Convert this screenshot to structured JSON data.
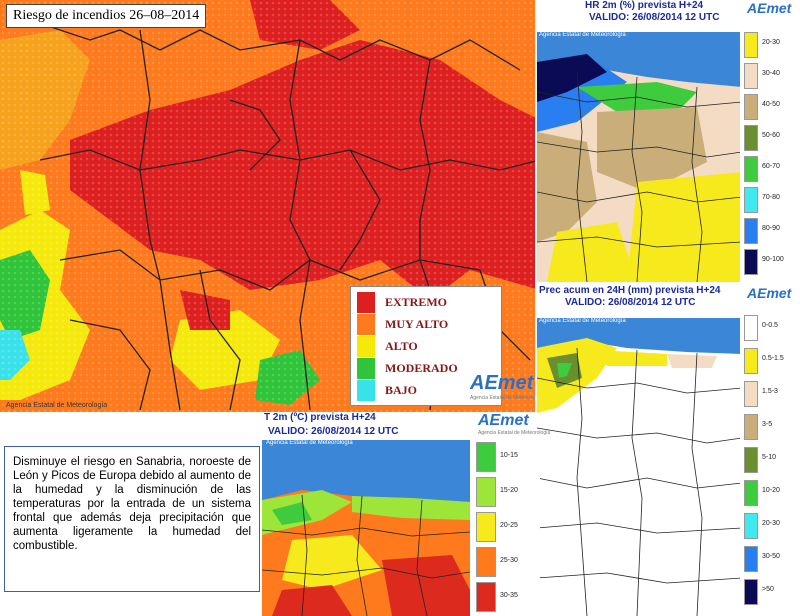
{
  "main_map": {
    "title": "Riesgo de incendios 26–08–2014",
    "credit": "Agencia Estatal de Meteorología",
    "legend": [
      {
        "label": "EXTREMO",
        "color": "#dd1f1f"
      },
      {
        "label": "MUY ALTO",
        "color": "#ff7a1c"
      },
      {
        "label": "ALTO",
        "color": "#f4e90b"
      },
      {
        "label": "MODERADO",
        "color": "#2fc439"
      },
      {
        "label": "BAJO",
        "color": "#39e2e8"
      }
    ]
  },
  "hr_map": {
    "title": "HR 2m (%) prevista H+24",
    "valid": "VALIDO: 26/08/2014 12 UTC",
    "credit": "Agencia Estatal de Meteorología",
    "legend": [
      {
        "label": "20-30",
        "color": "#f6ea1c"
      },
      {
        "label": "30-40",
        "color": "#f4dcc4"
      },
      {
        "label": "40-50",
        "color": "#c9ae7a"
      },
      {
        "label": "50-60",
        "color": "#6a8f2e"
      },
      {
        "label": "60-70",
        "color": "#3ecb3e"
      },
      {
        "label": "70-80",
        "color": "#40e8f0"
      },
      {
        "label": "80-90",
        "color": "#2a7ff0"
      },
      {
        "label": "90-100",
        "color": "#0b0a55"
      }
    ]
  },
  "prec_map": {
    "title": "Prec acum en 24H (mm) prevista H+24",
    "valid": "VALIDO: 26/08/2014 12 UTC",
    "credit": "Agencia Estatal de Meteorología",
    "legend": [
      {
        "label": "0-0.5",
        "color": "#ffffff"
      },
      {
        "label": "0.5-1.5",
        "color": "#f6ea1c"
      },
      {
        "label": "1.5-3",
        "color": "#f4dcc4"
      },
      {
        "label": "3-5",
        "color": "#c9ae7a"
      },
      {
        "label": "5-10",
        "color": "#6a8f2e"
      },
      {
        "label": "10-20",
        "color": "#3ecb3e"
      },
      {
        "label": "20-30",
        "color": "#40e8f0"
      },
      {
        "label": "30-50",
        "color": "#2a7ff0"
      },
      {
        "label": ">50",
        "color": "#0b0a55"
      }
    ]
  },
  "temp_map": {
    "title": "T 2m (ºC) prevista H+24",
    "valid": "VALIDO: 26/08/2014 12 UTC",
    "credit": "Agencia Estatal de Meteorología",
    "legend": [
      {
        "label": "10-15",
        "color": "#3ecb3e"
      },
      {
        "label": "15-20",
        "color": "#9ee53a"
      },
      {
        "label": "20-25",
        "color": "#f6ea1c"
      },
      {
        "label": "25-30",
        "color": "#ff7a1c"
      },
      {
        "label": "30-35",
        "color": "#dd2a1f"
      }
    ]
  },
  "logo": {
    "name": "AEmet",
    "subtitle": "Agencia Estatal de Meteorología"
  },
  "description": "Disminuye el riesgo en Sanabria, noroeste de León y Picos de Europa debido al aumento de la humedad y la disminución de las temperaturas por la entrada de un sistema frontal que además deja precipitación que aumenta ligeramente la humedad del combustible."
}
